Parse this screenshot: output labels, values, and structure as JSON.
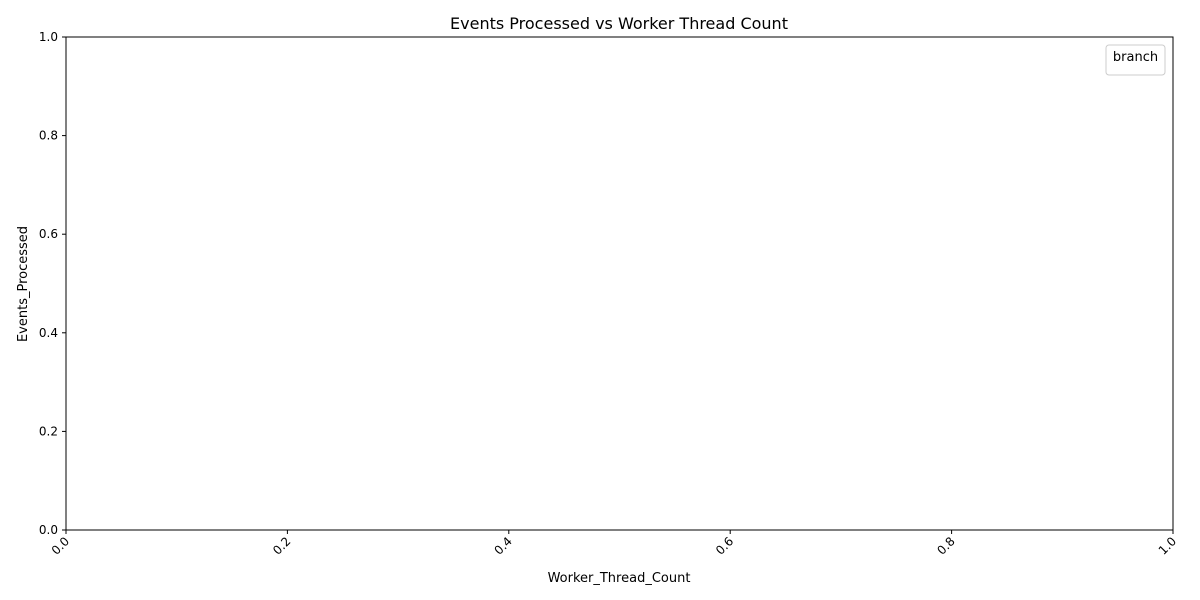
{
  "chart_data": {
    "type": "line",
    "title": "Events Processed vs Worker Thread Count",
    "xlabel": "Worker_Thread_Count",
    "ylabel": "Events_Processed",
    "xlim": [
      0.0,
      1.0
    ],
    "ylim": [
      0.0,
      1.0
    ],
    "x_ticks": [
      "0.0",
      "0.2",
      "0.4",
      "0.6",
      "0.8",
      "1.0"
    ],
    "y_ticks": [
      "0.0",
      "0.2",
      "0.4",
      "0.6",
      "0.8",
      "1.0"
    ],
    "x_tick_rotation_deg": 45,
    "grid": false,
    "legend": {
      "title": "branch",
      "placement": "top-right",
      "entries": []
    },
    "series": []
  }
}
